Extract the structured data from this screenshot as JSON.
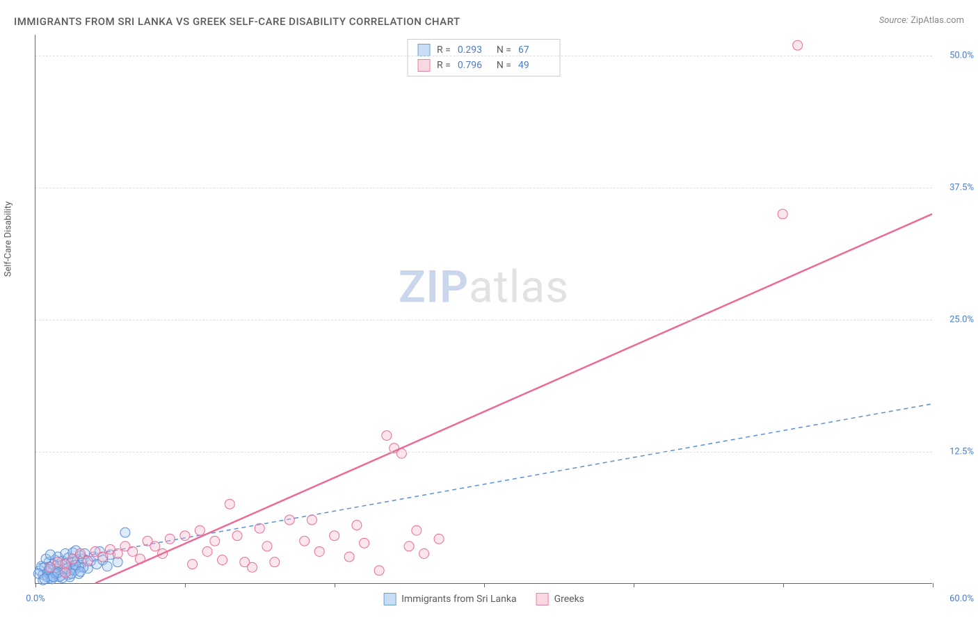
{
  "title": "IMMIGRANTS FROM SRI LANKA VS GREEK SELF-CARE DISABILITY CORRELATION CHART",
  "source_label": "Source:",
  "source_value": "ZipAtlas.com",
  "y_axis_label": "Self-Care Disability",
  "watermark_bold": "ZIP",
  "watermark_rest": "atlas",
  "chart": {
    "type": "scatter",
    "background_color": "#ffffff",
    "grid_color": "#dddddd",
    "axis_color": "#666666",
    "tick_label_color": "#4a7bc8",
    "text_color": "#5a5a5a",
    "xlim": [
      0,
      60
    ],
    "ylim": [
      0,
      52
    ],
    "x_ticks": [
      0,
      10,
      20,
      30,
      40,
      50,
      60
    ],
    "x_tick_labels": {
      "first": "0.0%",
      "last": "60.0%"
    },
    "y_gridlines": [
      12.5,
      25.0,
      37.5,
      50.0
    ],
    "y_tick_labels": [
      "12.5%",
      "25.0%",
      "37.5%",
      "50.0%"
    ],
    "title_fontsize": 15,
    "label_fontsize": 13,
    "marker_radius": 7,
    "marker_opacity": 0.35,
    "line_width_solid": 2.5,
    "line_width_dashed": 1.5,
    "series": [
      {
        "name": "Immigrants from Sri Lanka",
        "color_fill": "#9ec3f0",
        "color_stroke": "#5a8fd6",
        "swatch_fill": "#c9ddf5",
        "swatch_border": "#6a9fd8",
        "R_label": "R =",
        "R": "0.293",
        "N_label": "N =",
        "N": "67",
        "trend": {
          "x1": 0.2,
          "y1": 1.8,
          "x2": 60,
          "y2": 17.0,
          "style": "dashed"
        },
        "points": [
          [
            0.3,
            1.2
          ],
          [
            0.5,
            0.8
          ],
          [
            0.6,
            1.5
          ],
          [
            0.8,
            1.0
          ],
          [
            0.9,
            2.0
          ],
          [
            1.0,
            1.3
          ],
          [
            1.1,
            0.7
          ],
          [
            1.2,
            1.8
          ],
          [
            1.3,
            2.2
          ],
          [
            1.4,
            1.1
          ],
          [
            1.5,
            2.5
          ],
          [
            1.6,
            1.6
          ],
          [
            1.8,
            2.1
          ],
          [
            1.9,
            1.4
          ],
          [
            2.0,
            2.8
          ],
          [
            2.1,
            1.9
          ],
          [
            2.2,
            2.4
          ],
          [
            2.3,
            1.2
          ],
          [
            2.4,
            2.0
          ],
          [
            2.5,
            2.9
          ],
          [
            2.6,
            1.7
          ],
          [
            2.7,
            3.1
          ],
          [
            2.8,
            2.2
          ],
          [
            2.9,
            1.5
          ],
          [
            3.0,
            2.6
          ],
          [
            3.1,
            1.9
          ],
          [
            3.2,
            2.3
          ],
          [
            3.3,
            2.8
          ],
          [
            3.5,
            1.4
          ],
          [
            3.7,
            2.1
          ],
          [
            3.9,
            2.5
          ],
          [
            4.1,
            1.8
          ],
          [
            4.3,
            3.0
          ],
          [
            4.5,
            2.2
          ],
          [
            4.8,
            1.6
          ],
          [
            5.0,
            2.7
          ],
          [
            5.5,
            2.0
          ],
          [
            6.0,
            4.8
          ],
          [
            1.0,
            0.5
          ],
          [
            1.3,
            0.9
          ],
          [
            1.6,
            0.6
          ],
          [
            1.9,
            1.1
          ],
          [
            2.2,
            0.8
          ],
          [
            2.5,
            1.3
          ],
          [
            0.4,
            1.6
          ],
          [
            0.7,
            2.3
          ],
          [
            1.0,
            2.7
          ],
          [
            0.5,
            0.3
          ],
          [
            0.8,
            0.6
          ],
          [
            1.1,
            0.4
          ],
          [
            1.4,
            0.9
          ],
          [
            1.7,
            0.7
          ],
          [
            2.0,
            1.0
          ],
          [
            2.3,
            0.6
          ],
          [
            2.6,
            1.2
          ],
          [
            2.9,
            0.9
          ],
          [
            3.2,
            1.5
          ],
          [
            0.2,
            0.9
          ],
          [
            0.6,
            0.4
          ],
          [
            0.9,
            1.3
          ],
          [
            1.2,
            0.6
          ],
          [
            1.5,
            1.0
          ],
          [
            1.8,
            0.5
          ],
          [
            2.1,
            1.4
          ],
          [
            2.4,
            0.9
          ],
          [
            2.7,
            1.7
          ],
          [
            3.0,
            1.1
          ]
        ]
      },
      {
        "name": "Greeks",
        "color_fill": "#f5b8cb",
        "color_stroke": "#ec6a95",
        "swatch_fill": "#fad8e2",
        "swatch_border": "#ee7fa3",
        "R_label": "R =",
        "R": "0.796",
        "N_label": "N =",
        "N": "49",
        "trend": {
          "x1": 4.0,
          "y1": 0.0,
          "x2": 60,
          "y2": 35.0,
          "style": "solid"
        },
        "points": [
          [
            1.0,
            1.5
          ],
          [
            1.5,
            2.0
          ],
          [
            2.0,
            1.8
          ],
          [
            2.5,
            2.3
          ],
          [
            3.0,
            2.8
          ],
          [
            3.5,
            2.1
          ],
          [
            4.0,
            3.0
          ],
          [
            4.5,
            2.5
          ],
          [
            5.0,
            3.2
          ],
          [
            5.5,
            2.8
          ],
          [
            6.0,
            3.5
          ],
          [
            6.5,
            3.0
          ],
          [
            7.0,
            2.3
          ],
          [
            7.5,
            4.0
          ],
          [
            8.0,
            3.5
          ],
          [
            8.5,
            2.8
          ],
          [
            9.0,
            4.2
          ],
          [
            10.0,
            4.5
          ],
          [
            10.5,
            1.8
          ],
          [
            11.0,
            5.0
          ],
          [
            11.5,
            3.0
          ],
          [
            12.0,
            4.0
          ],
          [
            12.5,
            2.2
          ],
          [
            13.0,
            7.5
          ],
          [
            13.5,
            4.5
          ],
          [
            14.0,
            2.0
          ],
          [
            14.5,
            1.5
          ],
          [
            15.0,
            5.2
          ],
          [
            15.5,
            3.5
          ],
          [
            16.0,
            2.0
          ],
          [
            17.0,
            6.0
          ],
          [
            18.0,
            4.0
          ],
          [
            19.0,
            3.0
          ],
          [
            20.0,
            4.5
          ],
          [
            21.0,
            2.5
          ],
          [
            21.5,
            5.5
          ],
          [
            22.0,
            3.8
          ],
          [
            23.0,
            1.2
          ],
          [
            23.5,
            14.0
          ],
          [
            24.0,
            12.8
          ],
          [
            24.5,
            12.3
          ],
          [
            25.0,
            3.5
          ],
          [
            25.5,
            5.0
          ],
          [
            26.0,
            2.8
          ],
          [
            27.0,
            4.2
          ],
          [
            18.5,
            6.0
          ],
          [
            50.0,
            35.0
          ],
          [
            51.0,
            51.0
          ],
          [
            2.0,
            1.0
          ]
        ]
      }
    ],
    "bottom_legend": [
      {
        "label": "Immigrants from Sri Lanka",
        "fill": "#c9ddf5",
        "border": "#6a9fd8"
      },
      {
        "label": "Greeks",
        "fill": "#fad8e2",
        "border": "#ee7fa3"
      }
    ]
  }
}
